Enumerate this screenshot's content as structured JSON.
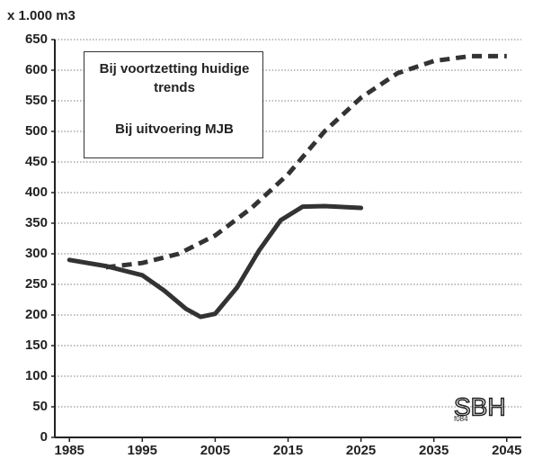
{
  "chart_data": {
    "type": "line",
    "y_label": "x 1.000 m3",
    "xlim": [
      1983,
      2047
    ],
    "xticks": [
      1985,
      1995,
      2005,
      2015,
      2025,
      2035,
      2045
    ],
    "ylim": [
      0,
      650
    ],
    "yticks": [
      0,
      50,
      100,
      150,
      200,
      250,
      300,
      350,
      400,
      450,
      500,
      550,
      600,
      650
    ],
    "grid": true,
    "series": [
      {
        "name": "Bij voortzetting huidige trends",
        "color": "#333333",
        "dash": false,
        "x": [
          1985,
          1990,
          1995,
          1998,
          2001,
          2003,
          2005,
          2008,
          2011,
          2014,
          2017,
          2020,
          2025
        ],
        "values": [
          290,
          280,
          265,
          240,
          210,
          197,
          202,
          245,
          305,
          355,
          377,
          378,
          375
        ]
      },
      {
        "name": "Bij uitvoering MJB",
        "color": "#333333",
        "dash": true,
        "x": [
          1990,
          1995,
          2000,
          2005,
          2010,
          2015,
          2020,
          2025,
          2030,
          2035,
          2040,
          2045
        ],
        "values": [
          278,
          285,
          300,
          330,
          375,
          430,
          500,
          555,
          595,
          615,
          623,
          623
        ]
      }
    ],
    "logo_code": "f084",
    "logo": "SBH"
  }
}
